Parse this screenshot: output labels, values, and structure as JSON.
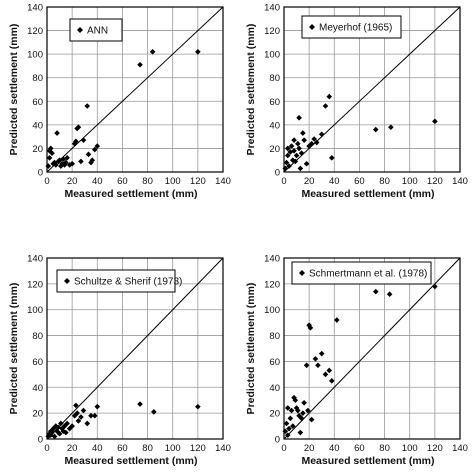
{
  "chart_data": [
    {
      "type": "scatter",
      "legend": "ANN",
      "xlabel": "Measured settlement (mm)",
      "ylabel": "Predicted settlement (mm)",
      "xlim": [
        0,
        140
      ],
      "ylim": [
        0,
        140
      ],
      "xticks": [
        0,
        20,
        40,
        60,
        80,
        100,
        120,
        140
      ],
      "yticks": [
        0,
        20,
        40,
        60,
        80,
        100,
        120,
        140
      ],
      "reference_line": "y = x",
      "points": [
        [
          1,
          5
        ],
        [
          2,
          12
        ],
        [
          2,
          18
        ],
        [
          3,
          20
        ],
        [
          4,
          16
        ],
        [
          5,
          7
        ],
        [
          6,
          8
        ],
        [
          7,
          6
        ],
        [
          8,
          33
        ],
        [
          9,
          9
        ],
        [
          10,
          10
        ],
        [
          11,
          5
        ],
        [
          12,
          7
        ],
        [
          13,
          11
        ],
        [
          14,
          6
        ],
        [
          15,
          8
        ],
        [
          16,
          12
        ],
        [
          18,
          6
        ],
        [
          20,
          7
        ],
        [
          22,
          24
        ],
        [
          23,
          26
        ],
        [
          24,
          37
        ],
        [
          25,
          38
        ],
        [
          27,
          9
        ],
        [
          29,
          27
        ],
        [
          32,
          56
        ],
        [
          33,
          15
        ],
        [
          35,
          8
        ],
        [
          36,
          10
        ],
        [
          38,
          19
        ],
        [
          40,
          22
        ],
        [
          74,
          91
        ],
        [
          84,
          102
        ],
        [
          120,
          102
        ]
      ]
    },
    {
      "type": "scatter",
      "legend": "Meyerhof (1965)",
      "xlabel": "Measured settlement (mm)",
      "ylabel": "Predicted settlement (mm)",
      "xlim": [
        0,
        140
      ],
      "ylim": [
        0,
        140
      ],
      "xticks": [
        0,
        20,
        40,
        60,
        80,
        100,
        120,
        140
      ],
      "yticks": [
        0,
        20,
        40,
        60,
        80,
        100,
        120,
        140
      ],
      "reference_line": "y = x",
      "points": [
        [
          1,
          3
        ],
        [
          2,
          8
        ],
        [
          3,
          14
        ],
        [
          3,
          20
        ],
        [
          4,
          5
        ],
        [
          5,
          17
        ],
        [
          6,
          22
        ],
        [
          7,
          10
        ],
        [
          8,
          27
        ],
        [
          8,
          18
        ],
        [
          9,
          9
        ],
        [
          10,
          14
        ],
        [
          11,
          24
        ],
        [
          12,
          46
        ],
        [
          12,
          20
        ],
        [
          13,
          3
        ],
        [
          14,
          16
        ],
        [
          15,
          33
        ],
        [
          16,
          27
        ],
        [
          18,
          7
        ],
        [
          20,
          22
        ],
        [
          22,
          24
        ],
        [
          24,
          28
        ],
        [
          26,
          25
        ],
        [
          30,
          32
        ],
        [
          33,
          56
        ],
        [
          36,
          64
        ],
        [
          38,
          12
        ],
        [
          73,
          36
        ],
        [
          85,
          38
        ],
        [
          120,
          43
        ]
      ]
    },
    {
      "type": "scatter",
      "legend": "Schultze & Sherif (1973)",
      "xlabel": "Measured settlement (mm)",
      "ylabel": "Predicted settlement (mm)",
      "xlim": [
        0,
        140
      ],
      "ylim": [
        0,
        140
      ],
      "xticks": [
        0,
        20,
        40,
        60,
        80,
        100,
        120,
        140
      ],
      "yticks": [
        0,
        20,
        40,
        60,
        80,
        100,
        120,
        140
      ],
      "reference_line": "y = x",
      "points": [
        [
          1,
          2
        ],
        [
          2,
          4
        ],
        [
          3,
          6
        ],
        [
          3,
          3
        ],
        [
          4,
          5
        ],
        [
          5,
          8
        ],
        [
          6,
          2
        ],
        [
          7,
          10
        ],
        [
          8,
          6
        ],
        [
          9,
          9
        ],
        [
          10,
          4
        ],
        [
          11,
          12
        ],
        [
          12,
          8
        ],
        [
          13,
          6
        ],
        [
          14,
          10
        ],
        [
          15,
          5
        ],
        [
          16,
          12
        ],
        [
          18,
          8
        ],
        [
          20,
          10
        ],
        [
          22,
          18
        ],
        [
          23,
          26
        ],
        [
          24,
          20
        ],
        [
          25,
          14
        ],
        [
          27,
          17
        ],
        [
          29,
          22
        ],
        [
          32,
          12
        ],
        [
          35,
          18
        ],
        [
          38,
          18
        ],
        [
          40,
          25
        ],
        [
          74,
          27
        ],
        [
          85,
          21
        ],
        [
          120,
          25
        ]
      ]
    },
    {
      "type": "scatter",
      "legend": "Schmertmann et al. (1978)",
      "xlabel": "Measured settlement (mm)",
      "ylabel": "Predicted settlement (mm)",
      "xlim": [
        0,
        140
      ],
      "ylim": [
        0,
        140
      ],
      "xticks": [
        0,
        20,
        40,
        60,
        80,
        100,
        120,
        140
      ],
      "yticks": [
        0,
        20,
        40,
        60,
        80,
        100,
        120,
        140
      ],
      "reference_line": "y = x",
      "points": [
        [
          1,
          6
        ],
        [
          2,
          12
        ],
        [
          3,
          24
        ],
        [
          3,
          3
        ],
        [
          4,
          8
        ],
        [
          5,
          16
        ],
        [
          6,
          22
        ],
        [
          7,
          10
        ],
        [
          8,
          32
        ],
        [
          9,
          30
        ],
        [
          10,
          24
        ],
        [
          11,
          22
        ],
        [
          12,
          18
        ],
        [
          13,
          5
        ],
        [
          14,
          16
        ],
        [
          15,
          20
        ],
        [
          16,
          28
        ],
        [
          18,
          57
        ],
        [
          19,
          22
        ],
        [
          20,
          88
        ],
        [
          21,
          86
        ],
        [
          22,
          15
        ],
        [
          25,
          62
        ],
        [
          27,
          57
        ],
        [
          30,
          66
        ],
        [
          33,
          50
        ],
        [
          36,
          53
        ],
        [
          38,
          45
        ],
        [
          42,
          92
        ],
        [
          73,
          114
        ],
        [
          84,
          112
        ],
        [
          120,
          118
        ]
      ]
    }
  ]
}
